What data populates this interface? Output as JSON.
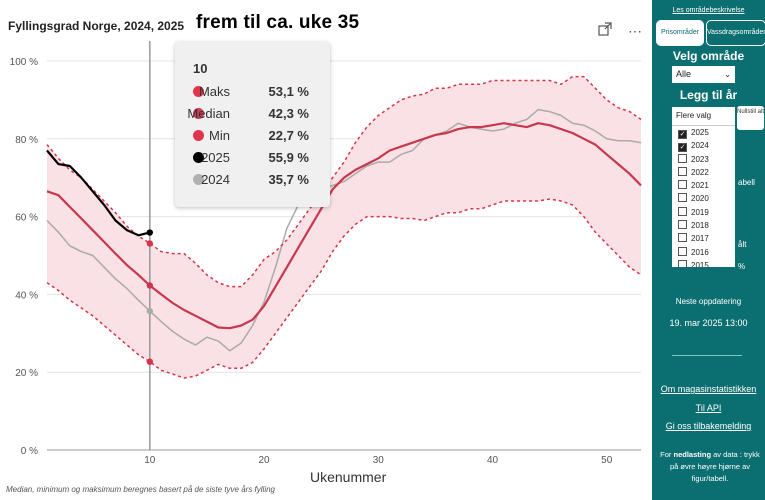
{
  "title": "Fyllingsgrad Norge, 2024, 2025",
  "overlay_text": "frem til ca. uke 35",
  "footnote": "Median, minimum og maksimum beregnes basert på de siste tyve års fylling",
  "icons": [
    "expand-icon",
    "more-options-icon"
  ],
  "tooltip": {
    "week": "10",
    "rows": [
      {
        "label": "Maks",
        "value": "53,1 %",
        "color": "#e0344c"
      },
      {
        "label": "Median",
        "value": "42,3 %",
        "color": "#cf3a52"
      },
      {
        "label": "Min",
        "value": "22,7 %",
        "color": "#e0344c"
      },
      {
        "label": "2025",
        "value": "55,9 %",
        "color": "#000000"
      },
      {
        "label": "2024",
        "value": "35,7 %",
        "color": "#b0b0b0"
      }
    ]
  },
  "chart_data": {
    "type": "line",
    "title": "Fyllingsgrad Norge, 2024, 2025",
    "xlabel": "Ukenummer",
    "ylabel": "",
    "xlim": [
      1,
      53
    ],
    "ylim": [
      0,
      100
    ],
    "x_ticks": [
      10,
      20,
      30,
      40,
      50
    ],
    "y_ticks": [
      "0 %",
      "20 %",
      "40 %",
      "60 %",
      "80 %",
      "100 %"
    ],
    "y_tick_values": [
      0,
      20,
      40,
      60,
      80,
      100
    ],
    "hover_week": 10,
    "series": [
      {
        "name": "Maks",
        "color": "#d9344a",
        "style": "dashed",
        "x": [
          1,
          2,
          3,
          4,
          5,
          6,
          7,
          8,
          9,
          10,
          11,
          12,
          13,
          14,
          15,
          16,
          17,
          18,
          19,
          20,
          21,
          22,
          23,
          24,
          25,
          26,
          27,
          28,
          29,
          30,
          31,
          32,
          33,
          34,
          35,
          36,
          37,
          38,
          39,
          40,
          41,
          42,
          43,
          44,
          45,
          46,
          47,
          48,
          49,
          50,
          51,
          52,
          53
        ],
        "values": [
          78.5,
          75,
          72,
          70,
          67,
          64,
          61,
          57.5,
          55,
          53.1,
          51,
          50.5,
          50.5,
          48,
          45,
          43,
          42,
          42,
          45,
          49,
          51,
          54,
          58,
          62,
          66,
          70,
          74,
          79,
          83,
          86,
          88,
          90,
          91,
          91.5,
          93,
          93,
          94,
          94,
          94,
          95,
          95,
          95,
          95,
          95,
          95,
          94,
          96,
          96,
          93,
          90,
          88,
          87,
          85
        ]
      },
      {
        "name": "Median",
        "color": "#c8374f",
        "style": "solid",
        "x": [
          1,
          2,
          3,
          4,
          5,
          6,
          7,
          8,
          9,
          10,
          11,
          12,
          13,
          14,
          15,
          16,
          17,
          18,
          19,
          20,
          21,
          22,
          23,
          24,
          25,
          26,
          27,
          28,
          29,
          30,
          31,
          32,
          33,
          34,
          35,
          36,
          37,
          38,
          39,
          40,
          41,
          42,
          43,
          44,
          45,
          46,
          47,
          48,
          49,
          50,
          51,
          52,
          53
        ],
        "values": [
          66.5,
          65.5,
          62.5,
          59.5,
          56.5,
          53.5,
          50.5,
          47.5,
          45,
          42.3,
          40,
          37.8,
          36,
          34.5,
          33,
          31.5,
          31.3,
          32,
          33.5,
          37,
          42,
          47,
          52,
          57,
          62,
          67,
          70,
          72,
          73.5,
          75,
          77,
          78,
          79,
          80,
          81,
          81.5,
          82.5,
          83,
          83,
          83.5,
          84,
          83.5,
          83,
          84,
          83.5,
          82.5,
          81.5,
          80,
          78.5,
          76,
          73.5,
          71,
          68
        ]
      },
      {
        "name": "Min",
        "color": "#d9344a",
        "style": "dashed",
        "x": [
          1,
          2,
          3,
          4,
          5,
          6,
          7,
          8,
          9,
          10,
          11,
          12,
          13,
          14,
          15,
          16,
          17,
          18,
          19,
          20,
          21,
          22,
          23,
          24,
          25,
          26,
          27,
          28,
          29,
          30,
          31,
          32,
          33,
          34,
          35,
          36,
          37,
          38,
          39,
          40,
          41,
          42,
          43,
          44,
          45,
          46,
          47,
          48,
          49,
          50,
          51,
          52,
          53
        ],
        "values": [
          43,
          41,
          38.5,
          36.5,
          34.5,
          32,
          29.5,
          27,
          24.5,
          22.7,
          20.5,
          19.5,
          18.5,
          19,
          20.5,
          22,
          21,
          21,
          22.5,
          26,
          30,
          34,
          38,
          42,
          46,
          51,
          55,
          58,
          60,
          60,
          60,
          59.5,
          59.5,
          59,
          60,
          61,
          61,
          62,
          62,
          63,
          64,
          64,
          64,
          64,
          64.5,
          64,
          63,
          60,
          56,
          53,
          50,
          47,
          45
        ]
      },
      {
        "name": "2025",
        "color": "#000000",
        "style": "solid",
        "x": [
          1,
          2,
          3,
          4,
          5,
          6,
          7,
          8,
          9,
          10
        ],
        "values": [
          77,
          73.5,
          73,
          70,
          66.5,
          63,
          59,
          56.5,
          55.2,
          55.9
        ]
      },
      {
        "name": "2024",
        "color": "#aaaaaa",
        "style": "solid",
        "x": [
          1,
          2,
          3,
          4,
          5,
          6,
          7,
          8,
          9,
          10,
          11,
          12,
          13,
          14,
          15,
          16,
          17,
          18,
          19,
          20,
          21,
          22,
          23,
          24,
          25,
          26,
          27,
          28,
          29,
          30,
          31,
          32,
          33,
          34,
          35,
          36,
          37,
          38,
          39,
          40,
          41,
          42,
          43,
          44,
          45,
          46,
          47,
          48,
          49,
          50,
          51,
          52,
          53
        ],
        "values": [
          59,
          56,
          52.5,
          51,
          50,
          47,
          44,
          41.5,
          38.5,
          35.7,
          33,
          30.5,
          28.5,
          27,
          29,
          28,
          25.5,
          27.5,
          32,
          38,
          47,
          57,
          63,
          66,
          67,
          68,
          69,
          71,
          73,
          74,
          74,
          76,
          77,
          80,
          81,
          82,
          84,
          83,
          82.5,
          82,
          82.5,
          84,
          85,
          87.5,
          87,
          86,
          84,
          83.5,
          82,
          80,
          79.5,
          79.5,
          79
        ]
      }
    ]
  },
  "sidebar": {
    "top_link": "Les områdebeskrivelse",
    "tab_active": "Prisområder",
    "tab_inactive": "Vassdragsområder",
    "velg_omrade": "Velg område",
    "omrade_value": "Alle",
    "legg_til_ar": "Legg til år",
    "flere_valg": "Flere valg",
    "nullstill": "Nullstill alt",
    "years": [
      {
        "label": "2025",
        "checked": "✓"
      },
      {
        "label": "2024",
        "checked": "✓"
      },
      {
        "label": "2023",
        "checked": ""
      },
      {
        "label": "2022",
        "checked": ""
      },
      {
        "label": "2021",
        "checked": ""
      },
      {
        "label": "2020",
        "checked": ""
      },
      {
        "label": "2019",
        "checked": ""
      },
      {
        "label": "2018",
        "checked": ""
      },
      {
        "label": "2017",
        "checked": ""
      },
      {
        "label": "2016",
        "checked": ""
      },
      {
        "label": "2015",
        "checked": ""
      }
    ],
    "hidden_text_1": "abell",
    "hidden_text_2": "ålt",
    "hidden_text_3": "%",
    "neste_oppdatering": "Neste oppdatering",
    "oppdatering_dato": "19. mar 2025 13:00",
    "link_magasin": "Om magasinstatistikken",
    "link_api": "Til API",
    "link_tilbakemelding": "Gi oss tilbakemelding",
    "note_prefix": "For ",
    "note_bold": "nedlasting",
    "note_suffix": " av data : trykk på øvre høyre hjørne av figur/tabell."
  }
}
